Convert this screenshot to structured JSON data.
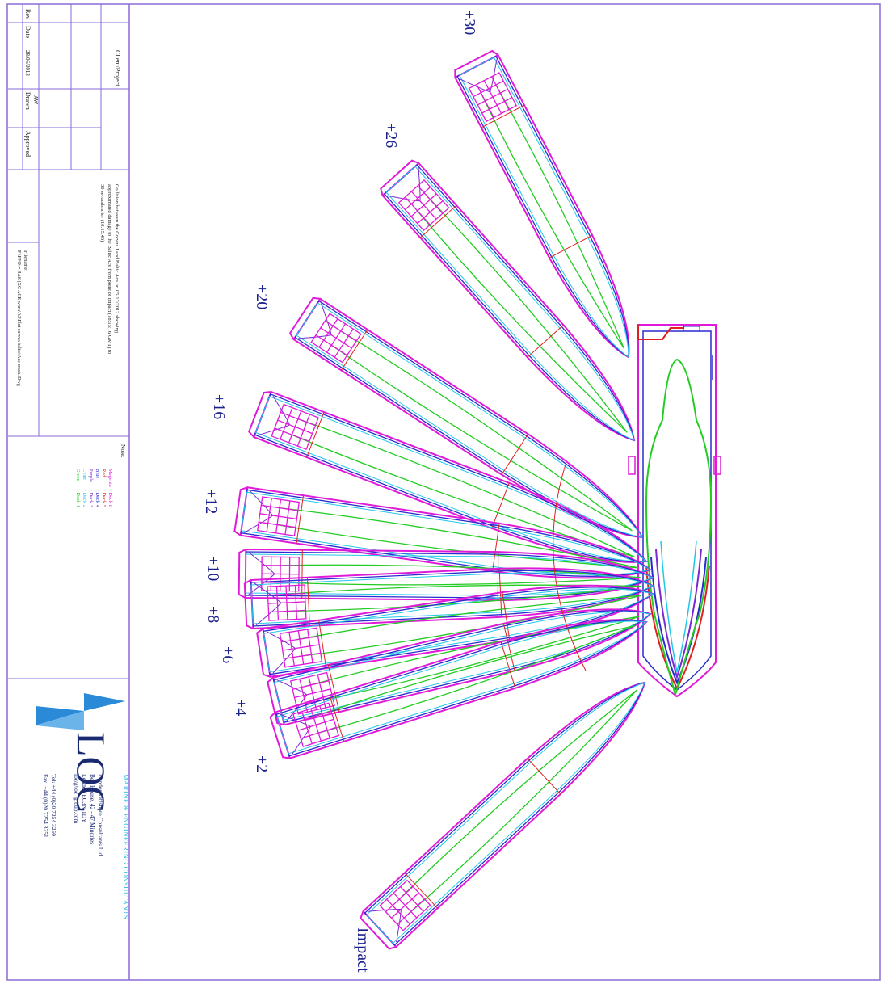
{
  "title_block": {
    "rev_label": "Rev",
    "date_label": "Date",
    "date_value": "28/06/2013",
    "drawn_label": "Drawn",
    "drawn_value": "AW",
    "approved_label": "Approved",
    "client_project_label": "Client/Project",
    "description_lines": [
      "Collision between the Corvus J and Baltic Ace on 05/12/2012 showing",
      "approximated damage to the Baltic Ace from point of impact (18:15:16 GMT) to",
      "30 seconds after (18:15:46)"
    ],
    "filename_label": "Filename:",
    "filename_value": "F:\\FFO\\ • BAS (XC ACE work\\A3\\Plot corvus baltic\\Ace crash..Dwg",
    "note_label": "Note:",
    "legend": [
      {
        "colour_name": "Magenta",
        "deck": ": Deck 6",
        "color": "#e01ad8"
      },
      {
        "colour_name": "Red",
        "deck": ": Deck 5",
        "color": "#e02020"
      },
      {
        "colour_name": "Blue",
        "deck": ": Deck 4",
        "color": "#2a2ad0"
      },
      {
        "colour_name": "Purple",
        "deck": ": Deck 3",
        "color": "#7a2ad0"
      },
      {
        "colour_name": "Cyan",
        "deck": ": Deck 2",
        "color": "#20c8e8"
      },
      {
        "colour_name": "Green",
        "deck": ": Deck 1",
        "color": "#22cc22"
      }
    ],
    "company": {
      "logo_text": "LOC",
      "tagline": "MARINE & ENGINEERING CONSULTANTS",
      "address_lines": [
        "London Offshore Consultants Ltd.",
        "Bex House, 42 - 47 Minories",
        "London EC3N 1DY",
        "loc@loc_group.com"
      ],
      "tel": "Tel: +44 (0)20 7254 3250",
      "fax": "Fax: +44 (0)20 7254 3251"
    }
  },
  "diagram": {
    "ship_labels": [
      "+30",
      "+26",
      "+20",
      "+16",
      "+12",
      "+10",
      "+8",
      "+6",
      "+4",
      "+2",
      "Impact"
    ],
    "colors": {
      "magenta": "#e01ad8",
      "red": "#e02020",
      "blue": "#2a2ad0",
      "purple": "#7a2ad0",
      "cyan": "#20c8e8",
      "green": "#22cc22",
      "frame": "#8a6ad8",
      "label": "#1a1f8c"
    }
  }
}
